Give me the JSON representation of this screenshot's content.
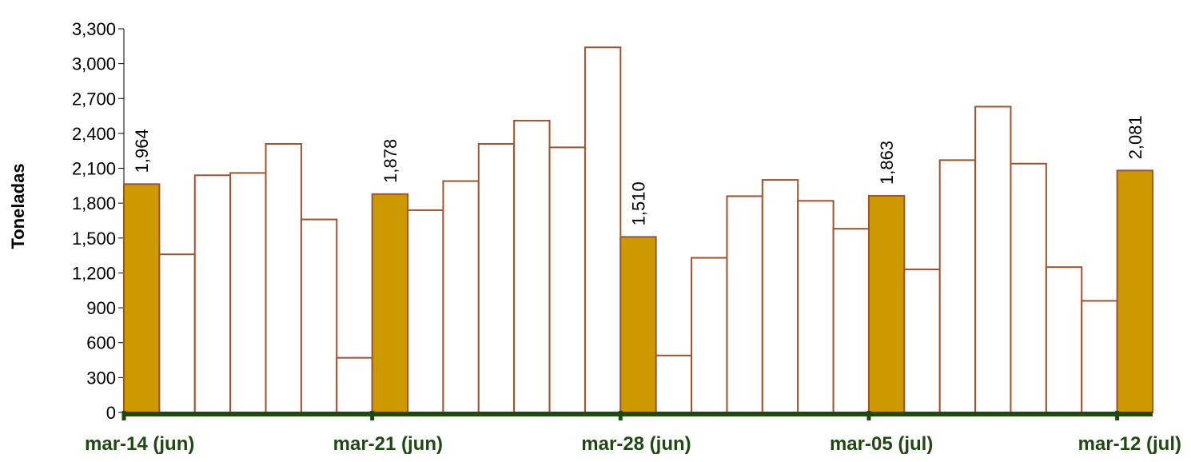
{
  "chart_data": {
    "type": "bar",
    "title": "",
    "ylabel": "Toneladas",
    "xlabel": "",
    "ylim": [
      0,
      3300
    ],
    "yticks": [
      "0",
      "300",
      "600",
      "900",
      "1,200",
      "1,500",
      "1,800",
      "2,100",
      "2,400",
      "2,700",
      "3,000",
      "3,300"
    ],
    "x_tick_labels": [
      "mar-14 (jun)",
      "mar-21 (jun)",
      "mar-28 (jun)",
      "mar-05 (jul)",
      "mar-12 (jul)"
    ],
    "x_tick_positions": [
      0,
      7,
      14,
      21,
      28
    ],
    "values": [
      1964,
      1360,
      2040,
      2060,
      2310,
      1660,
      470,
      1878,
      1740,
      1990,
      2310,
      2510,
      2280,
      3140,
      1510,
      490,
      1330,
      1860,
      2000,
      1820,
      1580,
      1863,
      1230,
      2170,
      2630,
      2140,
      1250,
      960,
      2081
    ],
    "highlighted_indices": [
      0,
      7,
      14,
      21,
      28
    ],
    "data_labels": [
      {
        "index": 0,
        "text": "1,964"
      },
      {
        "index": 7,
        "text": "1,878"
      },
      {
        "index": 14,
        "text": "1,510"
      },
      {
        "index": 21,
        "text": "1,863"
      },
      {
        "index": 28,
        "text": "2,081"
      }
    ],
    "colors": {
      "highlight_fill": "#cc9900",
      "bar_fill": "#ffffff",
      "bar_stroke": "#a0522d",
      "x_axis": "#1e4a12",
      "tick_label": "#1e4a12"
    },
    "grid": false
  }
}
